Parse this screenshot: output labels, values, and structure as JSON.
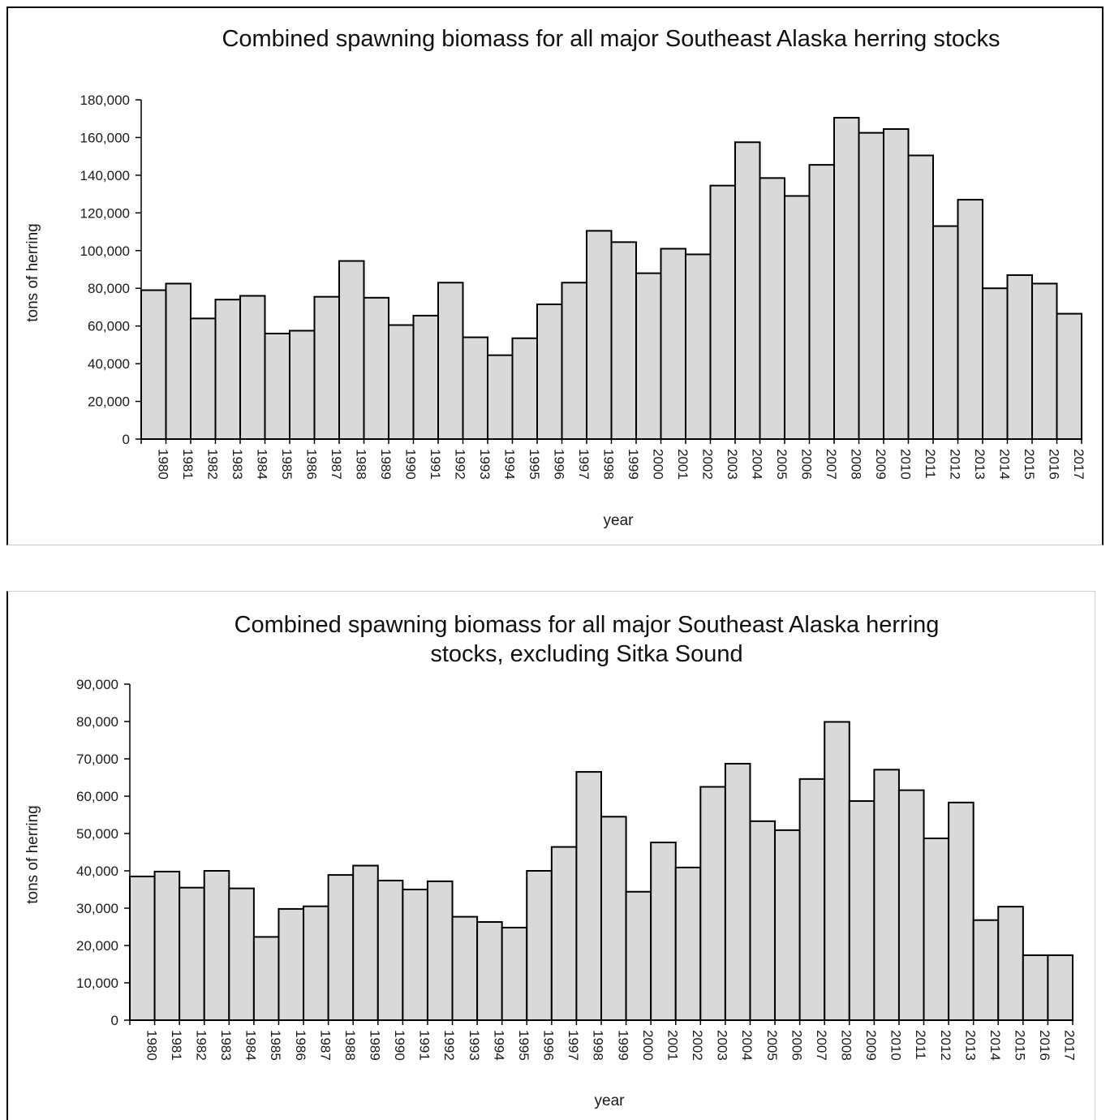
{
  "chart_data": [
    {
      "type": "bar",
      "title": "Combined spawning biomass for all major Southeast Alaska herring stocks",
      "xlabel": "year",
      "ylabel": "tons of herring",
      "ylim": [
        0,
        180000
      ],
      "yticks": [
        "0",
        "20,000",
        "40,000",
        "60,000",
        "80,000",
        "100,000",
        "120,000",
        "140,000",
        "160,000",
        "180,000"
      ],
      "grid": false,
      "bar_color": "#d9d9d9",
      "categories": [
        "1980",
        "1981",
        "1982",
        "1983",
        "1984",
        "1985",
        "1986",
        "1987",
        "1988",
        "1989",
        "1990",
        "1991",
        "1992",
        "1993",
        "1994",
        "1995",
        "1996",
        "1997",
        "1998",
        "1999",
        "2000",
        "2001",
        "2002",
        "2003",
        "2004",
        "2005",
        "2006",
        "2007",
        "2008",
        "2009",
        "2010",
        "2011",
        "2012",
        "2013",
        "2014",
        "2015",
        "2016",
        "2017"
      ],
      "values": [
        79000,
        82500,
        64000,
        74000,
        76000,
        56000,
        57500,
        75500,
        94500,
        75000,
        60500,
        65500,
        83000,
        54000,
        44500,
        53500,
        71500,
        83000,
        110500,
        104500,
        88000,
        101000,
        98000,
        134500,
        157500,
        138500,
        129000,
        145500,
        170500,
        162500,
        164500,
        150500,
        113000,
        127000,
        80000,
        87000,
        82500,
        66500
      ]
    },
    {
      "type": "bar",
      "title": "Combined spawning biomass for all major Southeast Alaska herring stocks, excluding Sitka Sound",
      "title_lines": [
        "Combined spawning biomass for all major Southeast Alaska herring",
        "stocks, excluding Sitka Sound"
      ],
      "xlabel": "year",
      "ylabel": "tons of herring",
      "ylim": [
        0,
        90000
      ],
      "yticks": [
        "0",
        "10,000",
        "20,000",
        "30,000",
        "40,000",
        "50,000",
        "60,000",
        "70,000",
        "80,000",
        "90,000"
      ],
      "grid": false,
      "bar_color": "#d9d9d9",
      "categories": [
        "1980",
        "1981",
        "1982",
        "1983",
        "1984",
        "1985",
        "1986",
        "1987",
        "1988",
        "1989",
        "1990",
        "1991",
        "1992",
        "1993",
        "1994",
        "1995",
        "1996",
        "1997",
        "1998",
        "1999",
        "2000",
        "2001",
        "2002",
        "2003",
        "2004",
        "2005",
        "2006",
        "2007",
        "2008",
        "2009",
        "2010",
        "2011",
        "2012",
        "2013",
        "2014",
        "2015",
        "2016",
        "2017"
      ],
      "values": [
        38500,
        39800,
        35500,
        40000,
        35300,
        22300,
        29800,
        30500,
        38900,
        41400,
        37400,
        35000,
        37200,
        27700,
        26300,
        24800,
        40000,
        46400,
        66500,
        54500,
        34400,
        47600,
        40900,
        62500,
        68700,
        53300,
        50900,
        64600,
        79900,
        58700,
        67100,
        61600,
        48700,
        58300,
        26800,
        30400,
        17400,
        17400
      ]
    }
  ]
}
